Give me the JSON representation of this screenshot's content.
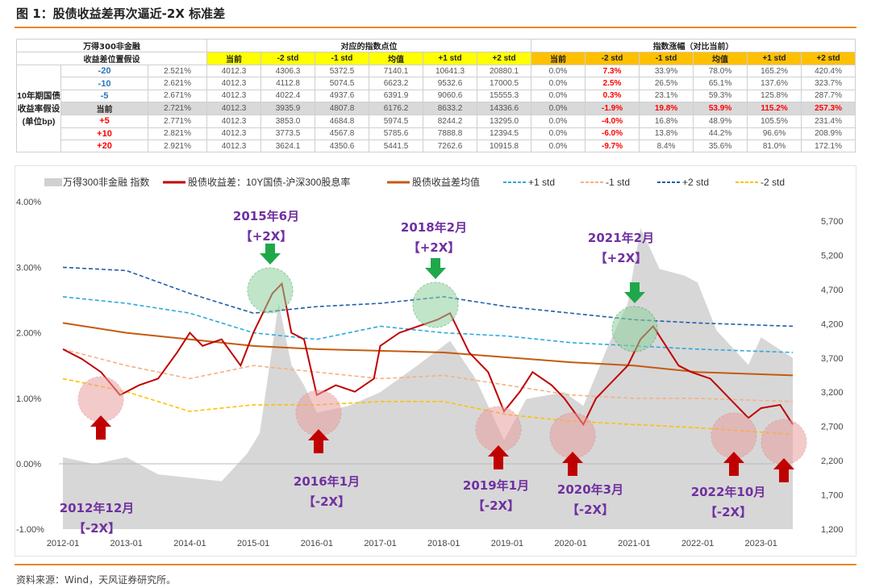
{
  "title": "图 1：股债收益差再次逼近-2X 标准差",
  "table": {
    "header_left_1": "万得300非金融",
    "header_left_2": "收益差位置假设",
    "header_points": "对应的指数点位",
    "header_change": "指数涨幅（对比当前）",
    "side_label": "10年期国债收益率假设(单位bp)",
    "cols": [
      "当前",
      "-2 std",
      "-1 std",
      "均值",
      "+1 std",
      "+2 std"
    ],
    "rows": [
      {
        "bp": "-20",
        "yield": "2.521%",
        "points": [
          "4012.3",
          "4306.3",
          "5372.5",
          "7140.1",
          "10641.3",
          "20880.1"
        ],
        "change": [
          "0.0%",
          "7.3%",
          "33.9%",
          "78.0%",
          "165.2%",
          "420.4%"
        ]
      },
      {
        "bp": "-10",
        "yield": "2.621%",
        "points": [
          "4012.3",
          "4112.8",
          "5074.5",
          "6623.2",
          "9532.6",
          "17000.5"
        ],
        "change": [
          "0.0%",
          "2.5%",
          "26.5%",
          "65.1%",
          "137.6%",
          "323.7%"
        ]
      },
      {
        "bp": "-5",
        "yield": "2.671%",
        "points": [
          "4012.3",
          "4022.4",
          "4937.6",
          "6391.9",
          "9060.6",
          "15555.3"
        ],
        "change": [
          "0.0%",
          "0.3%",
          "23.1%",
          "59.3%",
          "125.8%",
          "287.7%"
        ]
      },
      {
        "bp": "当前",
        "yield": "2.721%",
        "points": [
          "4012.3",
          "3935.9",
          "4807.8",
          "6176.2",
          "8633.2",
          "14336.6"
        ],
        "change": [
          "0.0%",
          "-1.9%",
          "19.8%",
          "53.9%",
          "115.2%",
          "257.3%"
        ]
      },
      {
        "bp": "+5",
        "yield": "2.771%",
        "points": [
          "4012.3",
          "3853.0",
          "4684.8",
          "5974.5",
          "8244.2",
          "13295.0"
        ],
        "change": [
          "0.0%",
          "-4.0%",
          "16.8%",
          "48.9%",
          "105.5%",
          "231.4%"
        ]
      },
      {
        "bp": "+10",
        "yield": "2.821%",
        "points": [
          "4012.3",
          "3773.5",
          "4567.8",
          "5785.6",
          "7888.8",
          "12394.5"
        ],
        "change": [
          "0.0%",
          "-6.0%",
          "13.8%",
          "44.2%",
          "96.6%",
          "208.9%"
        ]
      },
      {
        "bp": "+20",
        "yield": "2.921%",
        "points": [
          "4012.3",
          "3624.1",
          "4350.6",
          "5441.5",
          "7262.6",
          "10915.8"
        ],
        "change": [
          "0.0%",
          "-9.7%",
          "8.4%",
          "35.6%",
          "81.0%",
          "172.1%"
        ]
      }
    ]
  },
  "chart_data": {
    "type": "line",
    "y_left": {
      "ticks": [
        "4.00%",
        "3.00%",
        "2.00%",
        "1.00%",
        "0.00%",
        "-1.00%"
      ],
      "range": [
        -1,
        4
      ]
    },
    "y_right": {
      "ticks": [
        "5,700",
        "5,200",
        "4,700",
        "4,200",
        "3,700",
        "3,200",
        "2,700",
        "2,200",
        "1,700",
        "1,200"
      ],
      "range": [
        1200,
        5700
      ]
    },
    "x_ticks": [
      "2012-01",
      "2013-01",
      "2014-01",
      "2015-01",
      "2016-01",
      "2017-01",
      "2018-01",
      "2019-01",
      "2020-01",
      "2021-01",
      "2022-01",
      "2023-01"
    ],
    "legend": [
      "万得300非金融 指数",
      "股债收益差：10Y国债-沪深300股息率",
      "股债收益差均值",
      "+1 std",
      "-1 std",
      "+2 std",
      "-2 std"
    ],
    "colors": {
      "index": "#d0d0d0",
      "spread": "#c00000",
      "mean": "#c55a11",
      "p1": "#2eaadc",
      "m1": "#f4b183",
      "p2": "#1f5fa8",
      "m2": "#ffc000"
    },
    "index": [
      [
        2012.0,
        2250
      ],
      [
        2012.5,
        2150
      ],
      [
        2013.0,
        2250
      ],
      [
        2013.5,
        2000
      ],
      [
        2014.0,
        1950
      ],
      [
        2014.5,
        1900
      ],
      [
        2014.9,
        2300
      ],
      [
        2015.1,
        2600
      ],
      [
        2015.4,
        4500
      ],
      [
        2015.6,
        3600
      ],
      [
        2015.8,
        3300
      ],
      [
        2016.0,
        2900
      ],
      [
        2016.5,
        3000
      ],
      [
        2017.0,
        3200
      ],
      [
        2017.6,
        3600
      ],
      [
        2018.1,
        3950
      ],
      [
        2018.5,
        3400
      ],
      [
        2018.95,
        2500
      ],
      [
        2019.3,
        3100
      ],
      [
        2019.9,
        3200
      ],
      [
        2020.2,
        3000
      ],
      [
        2020.6,
        3900
      ],
      [
        2020.9,
        4500
      ],
      [
        2021.1,
        5600
      ],
      [
        2021.4,
        5000
      ],
      [
        2021.8,
        4900
      ],
      [
        2022.0,
        4800
      ],
      [
        2022.3,
        4100
      ],
      [
        2022.8,
        3600
      ],
      [
        2023.0,
        4000
      ],
      [
        2023.5,
        3700
      ]
    ],
    "spread": [
      [
        2012.0,
        1.75
      ],
      [
        2012.3,
        1.6
      ],
      [
        2012.6,
        1.4
      ],
      [
        2012.9,
        1.05
      ],
      [
        2013.2,
        1.2
      ],
      [
        2013.5,
        1.3
      ],
      [
        2013.8,
        1.7
      ],
      [
        2014.0,
        2.0
      ],
      [
        2014.2,
        1.8
      ],
      [
        2014.5,
        1.9
      ],
      [
        2014.8,
        1.5
      ],
      [
        2015.0,
        2.0
      ],
      [
        2015.3,
        2.6
      ],
      [
        2015.45,
        2.75
      ],
      [
        2015.6,
        2.0
      ],
      [
        2015.8,
        1.9
      ],
      [
        2016.0,
        1.05
      ],
      [
        2016.3,
        1.2
      ],
      [
        2016.6,
        1.1
      ],
      [
        2016.9,
        1.3
      ],
      [
        2017.0,
        1.8
      ],
      [
        2017.3,
        2.0
      ],
      [
        2017.6,
        2.1
      ],
      [
        2017.9,
        2.2
      ],
      [
        2018.1,
        2.3
      ],
      [
        2018.4,
        1.7
      ],
      [
        2018.7,
        1.4
      ],
      [
        2018.95,
        0.8
      ],
      [
        2019.2,
        1.1
      ],
      [
        2019.4,
        1.4
      ],
      [
        2019.7,
        1.2
      ],
      [
        2019.9,
        1.0
      ],
      [
        2020.2,
        0.6
      ],
      [
        2020.4,
        1.0
      ],
      [
        2020.7,
        1.3
      ],
      [
        2020.9,
        1.5
      ],
      [
        2021.1,
        1.9
      ],
      [
        2021.3,
        2.1
      ],
      [
        2021.5,
        1.8
      ],
      [
        2021.7,
        1.5
      ],
      [
        2021.9,
        1.4
      ],
      [
        2022.2,
        1.3
      ],
      [
        2022.5,
        1.0
      ],
      [
        2022.8,
        0.7
      ],
      [
        2023.0,
        0.85
      ],
      [
        2023.3,
        0.9
      ],
      [
        2023.5,
        0.6
      ]
    ],
    "mean": [
      [
        2012.0,
        2.15
      ],
      [
        2013.0,
        2.0
      ],
      [
        2014.0,
        1.9
      ],
      [
        2015.0,
        1.8
      ],
      [
        2016.0,
        1.75
      ],
      [
        2018.0,
        1.7
      ],
      [
        2020.0,
        1.55
      ],
      [
        2021.0,
        1.5
      ],
      [
        2022.0,
        1.4
      ],
      [
        2023.5,
        1.35
      ]
    ],
    "p1": [
      [
        2012.0,
        2.55
      ],
      [
        2013.0,
        2.45
      ],
      [
        2014.0,
        2.3
      ],
      [
        2015.0,
        2.0
      ],
      [
        2016.0,
        1.9
      ],
      [
        2017.0,
        2.1
      ],
      [
        2018.0,
        2.0
      ],
      [
        2019.0,
        1.95
      ],
      [
        2020.0,
        1.85
      ],
      [
        2021.0,
        1.8
      ],
      [
        2022.0,
        1.75
      ],
      [
        2023.5,
        1.7
      ]
    ],
    "m1": [
      [
        2012.0,
        1.75
      ],
      [
        2013.0,
        1.5
      ],
      [
        2014.0,
        1.3
      ],
      [
        2015.0,
        1.5
      ],
      [
        2016.0,
        1.4
      ],
      [
        2017.0,
        1.3
      ],
      [
        2018.0,
        1.35
      ],
      [
        2019.0,
        1.2
      ],
      [
        2020.0,
        1.05
      ],
      [
        2021.0,
        1.0
      ],
      [
        2022.0,
        1.0
      ],
      [
        2023.5,
        0.95
      ]
    ],
    "p2": [
      [
        2012.0,
        3.0
      ],
      [
        2013.0,
        2.95
      ],
      [
        2014.0,
        2.6
      ],
      [
        2015.0,
        2.3
      ],
      [
        2016.0,
        2.4
      ],
      [
        2017.0,
        2.45
      ],
      [
        2018.0,
        2.55
      ],
      [
        2019.0,
        2.4
      ],
      [
        2020.0,
        2.3
      ],
      [
        2021.0,
        2.2
      ],
      [
        2022.0,
        2.15
      ],
      [
        2023.5,
        2.1
      ]
    ],
    "m2": [
      [
        2012.0,
        1.3
      ],
      [
        2013.0,
        1.1
      ],
      [
        2014.0,
        0.8
      ],
      [
        2015.0,
        0.9
      ],
      [
        2016.0,
        0.9
      ],
      [
        2017.0,
        0.95
      ],
      [
        2018.0,
        0.95
      ],
      [
        2019.0,
        0.75
      ],
      [
        2020.0,
        0.65
      ],
      [
        2021.0,
        0.6
      ],
      [
        2022.0,
        0.55
      ],
      [
        2023.5,
        0.45
      ]
    ],
    "annotations": [
      {
        "date": "2012年12月",
        "tag": "【-2X】",
        "kind": "low"
      },
      {
        "date": "2015年6月",
        "tag": "【+2X】",
        "kind": "high"
      },
      {
        "date": "2016年1月",
        "tag": "【-2X】",
        "kind": "low"
      },
      {
        "date": "2018年2月",
        "tag": "【+2X】",
        "kind": "high"
      },
      {
        "date": "2019年1月",
        "tag": "【-2X】",
        "kind": "low"
      },
      {
        "date": "2020年3月",
        "tag": "【-2X】",
        "kind": "low"
      },
      {
        "date": "2021年2月",
        "tag": "【+2X】",
        "kind": "high"
      },
      {
        "date": "2022年10月",
        "tag": "【-2X】",
        "kind": "low"
      },
      {
        "date": "",
        "tag": "",
        "kind": "low"
      }
    ]
  },
  "source": "资料来源：Wind，天风证券研究所。"
}
